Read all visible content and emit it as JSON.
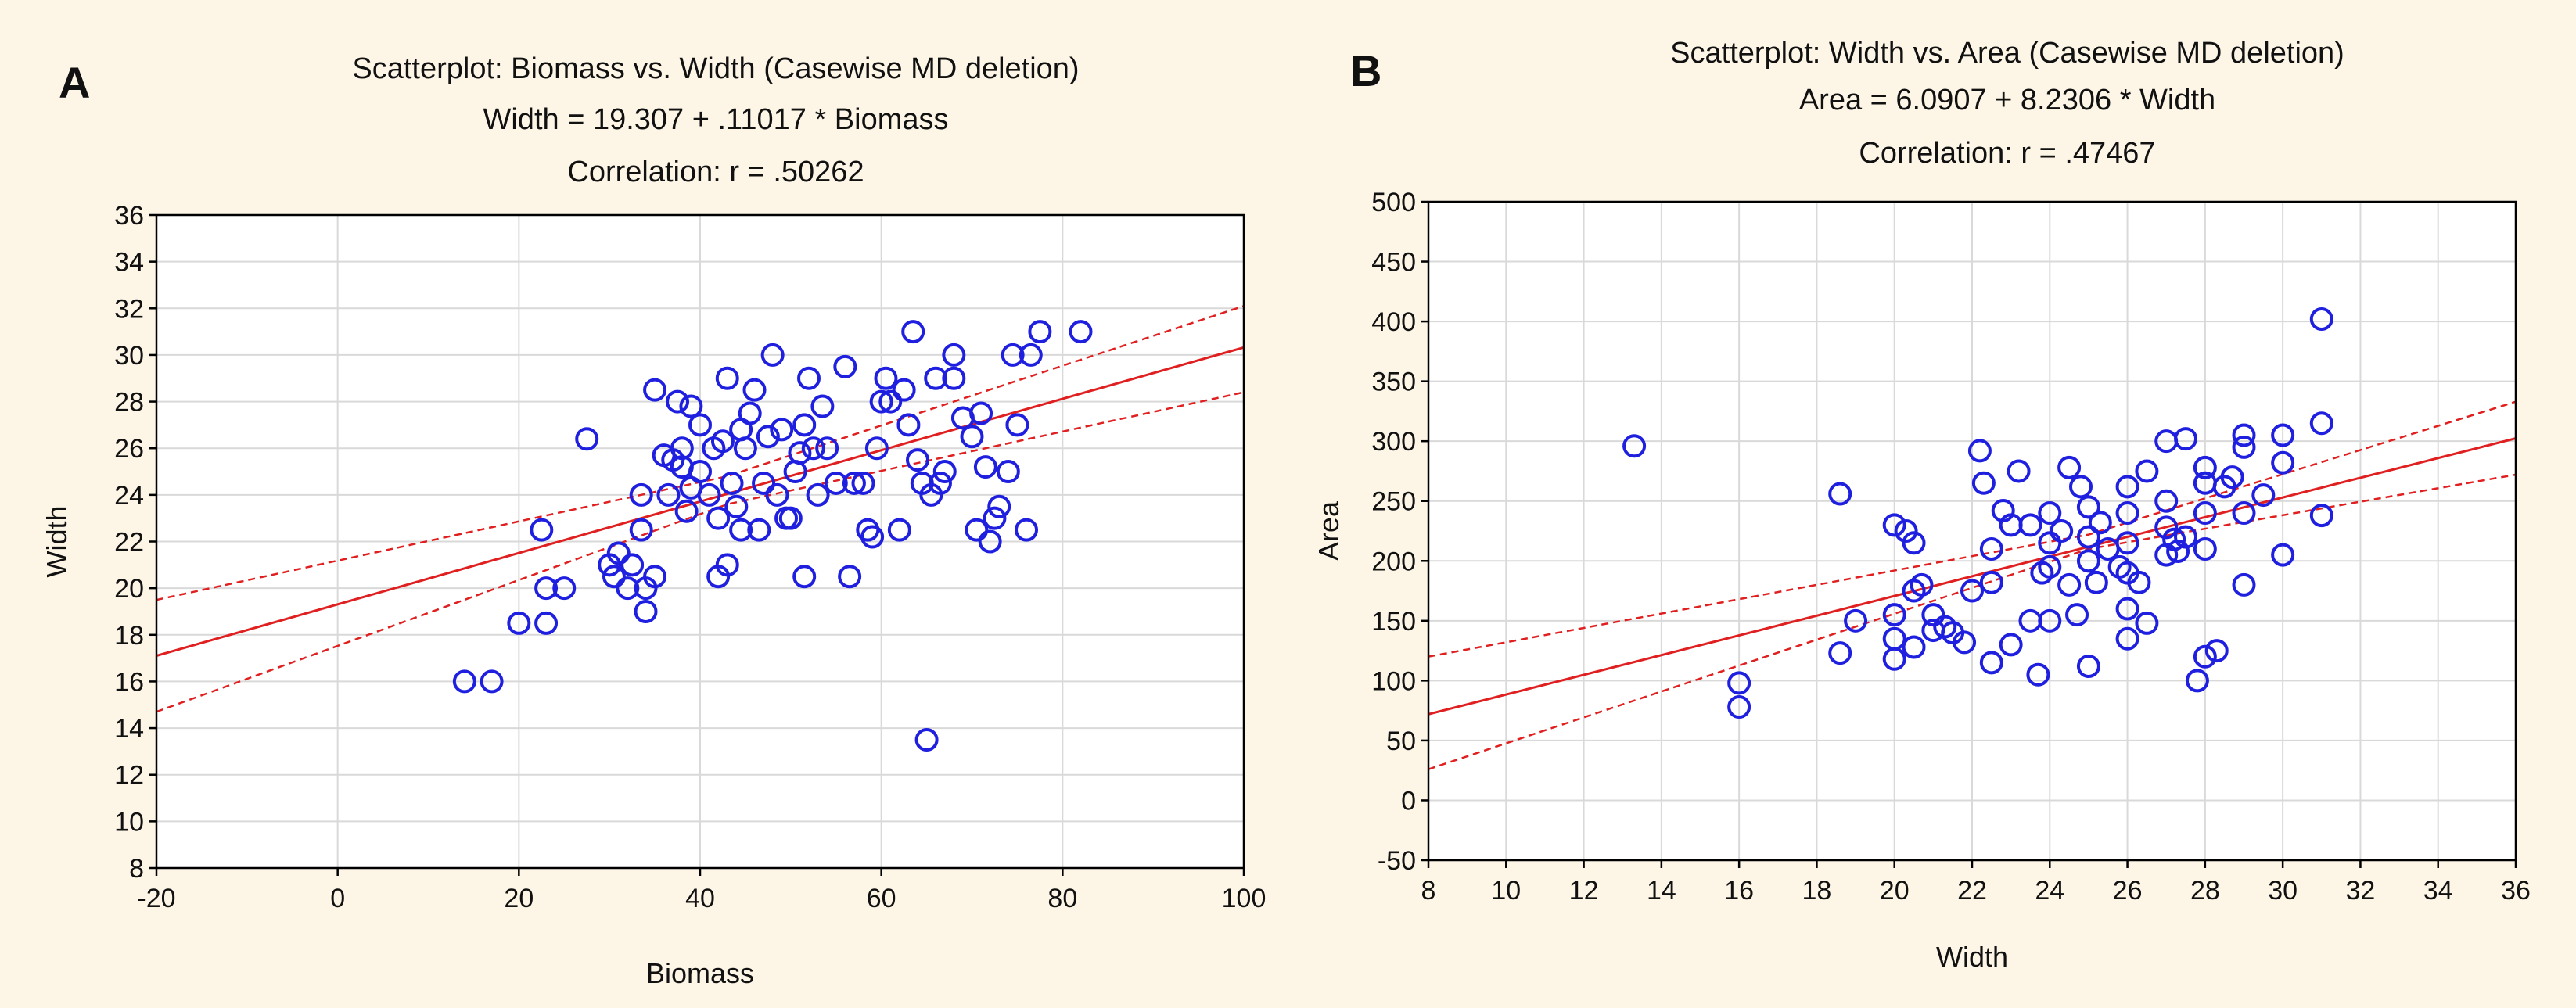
{
  "chart_data": [
    {
      "type": "scatter",
      "panel_letter": "A",
      "title": "Scatterplot: Biomass  vs. Width    (Casewise MD deletion)",
      "equation": "Width    = 19.307 + .11017 * Biomass",
      "correlation": "Correlation: r = .50262",
      "xlabel": "Biomass",
      "ylabel": "Width",
      "xlim": [
        -20,
        100
      ],
      "ylim": [
        8,
        36
      ],
      "xticks": [
        -20,
        0,
        20,
        40,
        60,
        80,
        100
      ],
      "yticks": [
        8,
        10,
        12,
        14,
        16,
        18,
        20,
        22,
        24,
        26,
        28,
        30,
        32,
        34,
        36
      ],
      "grid": true,
      "fit": {
        "intercept": 19.307,
        "slope": 0.11017
      },
      "ci_band": {
        "lower": [
          [
            -20,
            14.7
          ],
          [
            43,
            23.6
          ],
          [
            100,
            28.4
          ]
        ],
        "upper": [
          [
            -20,
            19.5
          ],
          [
            43,
            24.8
          ],
          [
            100,
            32.1
          ]
        ]
      },
      "colors": {
        "points": "#1f1fe0",
        "fit": "#e02020",
        "grid": "#d9d9d9"
      },
      "points": [
        [
          14,
          16
        ],
        [
          17,
          16
        ],
        [
          22.5,
          22.5
        ],
        [
          23,
          20
        ],
        [
          25,
          20
        ],
        [
          20,
          18.5
        ],
        [
          23,
          18.5
        ],
        [
          27.5,
          26.4
        ],
        [
          30,
          21
        ],
        [
          31,
          21.5
        ],
        [
          32,
          20
        ],
        [
          32.5,
          21
        ],
        [
          33.5,
          22.5
        ],
        [
          33.5,
          24
        ],
        [
          34,
          20
        ],
        [
          34,
          19
        ],
        [
          35,
          20.5
        ],
        [
          35,
          28.5
        ],
        [
          36,
          25.7
        ],
        [
          36.5,
          24
        ],
        [
          37,
          25.5
        ],
        [
          37.5,
          28
        ],
        [
          38,
          25.2
        ],
        [
          38.5,
          23.3
        ],
        [
          39,
          27.8
        ],
        [
          39,
          24.3
        ],
        [
          40,
          27
        ],
        [
          40,
          25
        ],
        [
          41,
          24
        ],
        [
          41.5,
          26
        ],
        [
          42,
          23
        ],
        [
          42.5,
          26.3
        ],
        [
          42,
          20.5
        ],
        [
          43,
          21
        ],
        [
          43,
          29
        ],
        [
          43.5,
          24.5
        ],
        [
          44,
          23.5
        ],
        [
          44.5,
          22.5
        ],
        [
          45,
          26
        ],
        [
          45.5,
          27.5
        ],
        [
          46,
          28.5
        ],
        [
          46.5,
          22.5
        ],
        [
          47,
          24.5
        ],
        [
          47.5,
          26.5
        ],
        [
          48,
          30
        ],
        [
          48.5,
          24
        ],
        [
          49,
          26.8
        ],
        [
          49.5,
          23
        ],
        [
          50,
          23
        ],
        [
          50.5,
          25
        ],
        [
          51,
          25.8
        ],
        [
          51.5,
          27
        ],
        [
          51.5,
          20.5
        ],
        [
          52,
          29
        ],
        [
          52.5,
          26
        ],
        [
          53,
          24
        ],
        [
          53.5,
          27.8
        ],
        [
          54,
          26
        ],
        [
          55,
          24.5
        ],
        [
          56,
          29.5
        ],
        [
          56.5,
          20.5
        ],
        [
          57,
          24.5
        ],
        [
          58,
          24.5
        ],
        [
          58.5,
          22.5
        ],
        [
          59,
          22.2
        ],
        [
          59.5,
          26
        ],
        [
          60,
          28
        ],
        [
          60.5,
          29
        ],
        [
          61,
          28
        ],
        [
          62,
          22.5
        ],
        [
          62.5,
          28.5
        ],
        [
          63,
          27
        ],
        [
          63.5,
          31
        ],
        [
          64,
          25.5
        ],
        [
          64.5,
          24.5
        ],
        [
          65,
          13.5
        ],
        [
          65.5,
          24
        ],
        [
          66,
          29
        ],
        [
          66.5,
          24.5
        ],
        [
          67,
          25
        ],
        [
          68,
          30
        ],
        [
          68,
          29
        ],
        [
          69,
          27.3
        ],
        [
          70,
          26.5
        ],
        [
          70.5,
          22.5
        ],
        [
          71,
          27.5
        ],
        [
          71.5,
          25.2
        ],
        [
          72,
          22
        ],
        [
          72.5,
          23
        ],
        [
          73,
          23.5
        ],
        [
          74,
          25
        ],
        [
          74.5,
          30
        ],
        [
          75,
          27
        ],
        [
          76,
          22.5
        ],
        [
          76.5,
          30
        ],
        [
          77.5,
          31
        ],
        [
          82,
          31
        ],
        [
          30.5,
          20.5
        ],
        [
          44.5,
          26.8
        ],
        [
          38,
          26
        ]
      ]
    },
    {
      "type": "scatter",
      "panel_letter": "B",
      "title": "Scatterplot: Width    vs. Area    (Casewise MD deletion)",
      "equation": "Area     = 6.0907 + 8.2306 * Width",
      "correlation": "Correlation: r = .47467",
      "xlabel": "Width",
      "ylabel": "Area",
      "xlim": [
        8,
        36
      ],
      "ylim": [
        -50,
        500
      ],
      "xticks": [
        8,
        10,
        12,
        14,
        16,
        18,
        20,
        22,
        24,
        26,
        28,
        30,
        32,
        34,
        36
      ],
      "yticks": [
        -50,
        0,
        50,
        100,
        150,
        200,
        250,
        300,
        350,
        400,
        450,
        500
      ],
      "grid": true,
      "fit": {
        "intercept": 6.0907,
        "slope": 8.2306
      },
      "ci_band": {
        "lower": [
          [
            8,
            26
          ],
          [
            25,
            210
          ],
          [
            36,
            272
          ]
        ],
        "upper": [
          [
            8,
            120
          ],
          [
            25,
            222
          ],
          [
            36,
            333
          ]
        ]
      },
      "colors": {
        "points": "#1f1fe0",
        "fit": "#e02020",
        "grid": "#d9d9d9"
      },
      "points": [
        [
          13.3,
          296
        ],
        [
          16,
          98
        ],
        [
          16,
          78
        ],
        [
          18.6,
          256
        ],
        [
          18.6,
          123
        ],
        [
          19,
          150
        ],
        [
          20,
          230
        ],
        [
          20,
          155
        ],
        [
          20,
          135
        ],
        [
          20,
          118
        ],
        [
          20.3,
          225
        ],
        [
          20.5,
          215
        ],
        [
          20.5,
          175
        ],
        [
          20.5,
          128
        ],
        [
          20.7,
          180
        ],
        [
          21,
          155
        ],
        [
          21,
          142
        ],
        [
          21.3,
          145
        ],
        [
          21.5,
          140
        ],
        [
          21.8,
          132
        ],
        [
          22,
          175
        ],
        [
          22.2,
          292
        ],
        [
          22.3,
          265
        ],
        [
          22.5,
          182
        ],
        [
          22.5,
          115
        ],
        [
          22.8,
          242
        ],
        [
          23,
          230
        ],
        [
          23,
          130
        ],
        [
          23.2,
          275
        ],
        [
          23.5,
          230
        ],
        [
          23.5,
          150
        ],
        [
          23.7,
          105
        ],
        [
          24,
          240
        ],
        [
          24,
          215
        ],
        [
          24,
          195
        ],
        [
          24,
          150
        ],
        [
          24.3,
          225
        ],
        [
          24.5,
          278
        ],
        [
          24.5,
          180
        ],
        [
          24.7,
          155
        ],
        [
          24.8,
          262
        ],
        [
          25,
          245
        ],
        [
          25,
          220
        ],
        [
          25,
          200
        ],
        [
          25,
          112
        ],
        [
          25.3,
          232
        ],
        [
          25.5,
          210
        ],
        [
          25.8,
          195
        ],
        [
          26,
          262
        ],
        [
          26,
          240
        ],
        [
          26,
          215
        ],
        [
          26,
          190
        ],
        [
          26,
          160
        ],
        [
          26,
          135
        ],
        [
          26.3,
          182
        ],
        [
          26.5,
          275
        ],
        [
          26.5,
          148
        ],
        [
          27,
          300
        ],
        [
          27,
          250
        ],
        [
          27,
          228
        ],
        [
          27,
          205
        ],
        [
          27.3,
          208
        ],
        [
          27.5,
          302
        ],
        [
          27.5,
          220
        ],
        [
          27.8,
          100
        ],
        [
          28,
          278
        ],
        [
          28,
          265
        ],
        [
          28,
          240
        ],
        [
          28,
          210
        ],
        [
          28,
          120
        ],
        [
          28.3,
          125
        ],
        [
          28.5,
          262
        ],
        [
          28.7,
          270
        ],
        [
          29,
          305
        ],
        [
          29,
          295
        ],
        [
          29,
          240
        ],
        [
          29,
          180
        ],
        [
          29.5,
          255
        ],
        [
          30,
          305
        ],
        [
          30,
          282
        ],
        [
          30,
          205
        ],
        [
          31,
          402
        ],
        [
          31,
          315
        ],
        [
          31,
          238
        ],
        [
          22.5,
          210
        ],
        [
          23.8,
          190
        ],
        [
          25.2,
          182
        ],
        [
          27.2,
          218
        ]
      ]
    }
  ]
}
